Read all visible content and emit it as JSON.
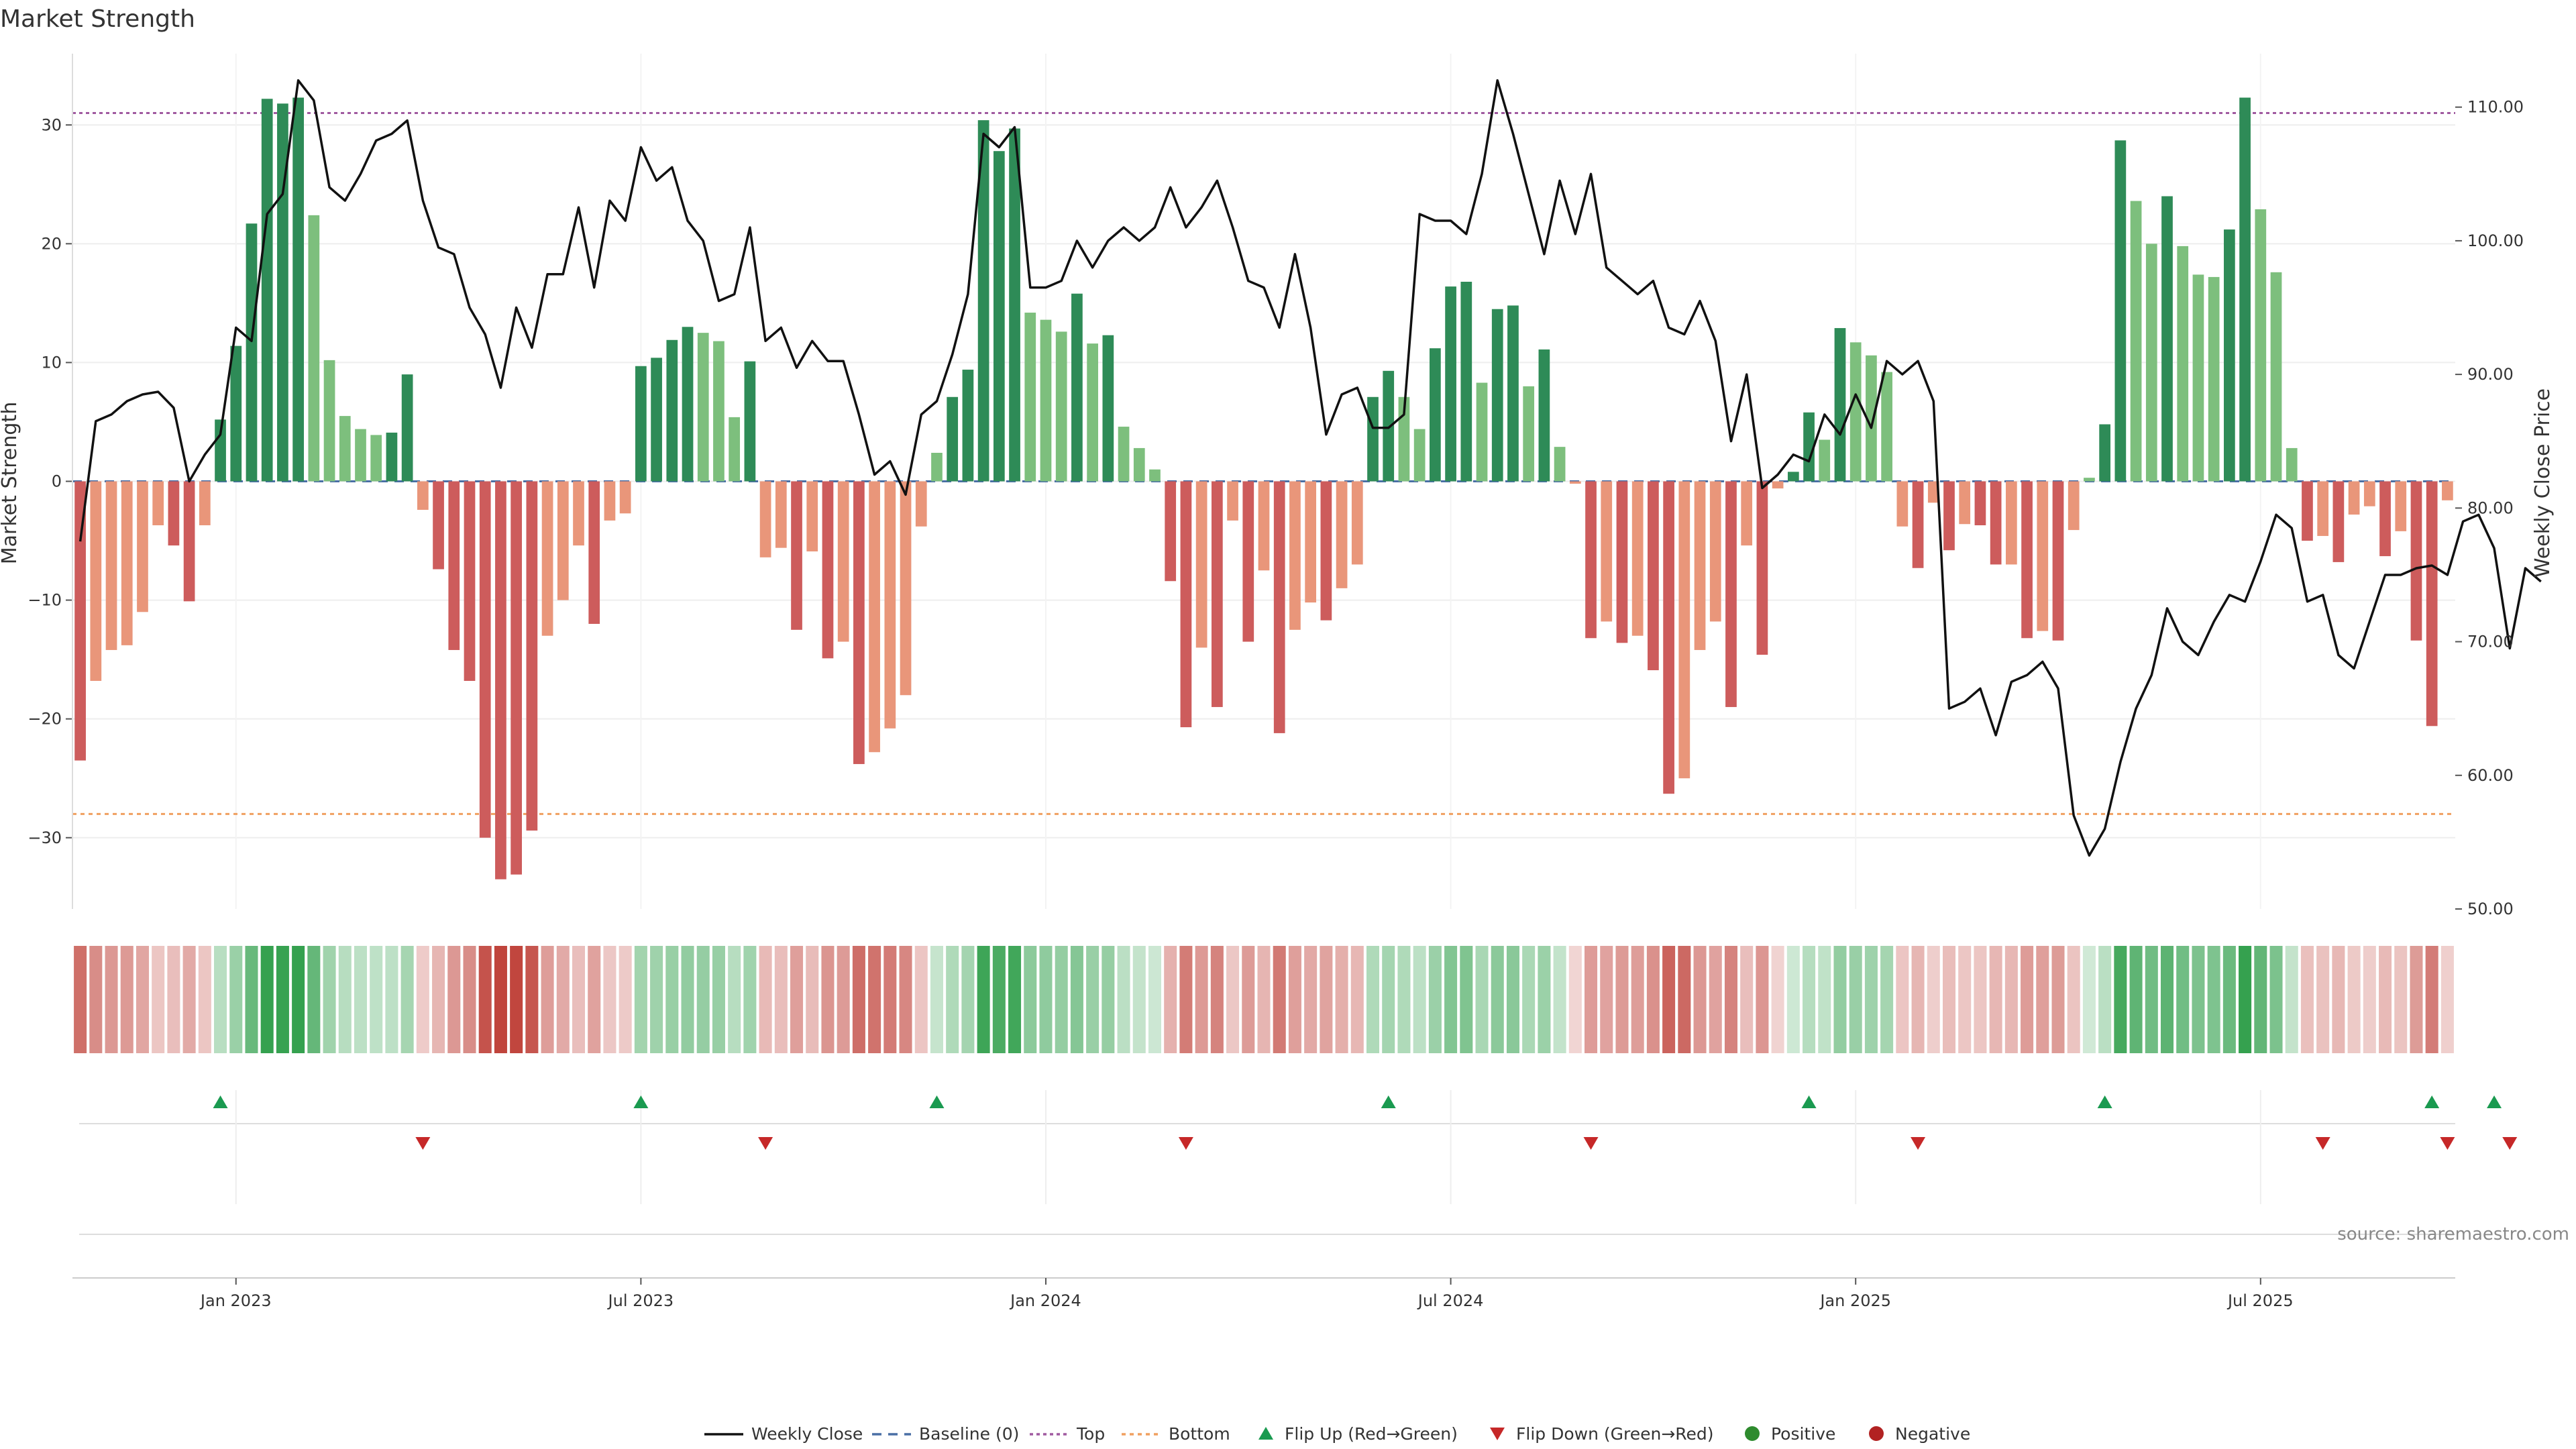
{
  "chart_data": {
    "type": "bar",
    "title": "Market Strength",
    "ylabel_left": "Market Strength",
    "ylabel_right": "Weekly Close Price",
    "ylim_left": [
      -36,
      36
    ],
    "ylim_right": [
      50,
      114
    ],
    "yticks_left": [
      30,
      20,
      10,
      0,
      -10,
      -20,
      -30
    ],
    "ytick_labels_left": [
      "30",
      "20",
      "10",
      "0",
      "−10",
      "−20",
      "−30"
    ],
    "yticks_right": [
      110,
      100,
      90,
      80,
      70,
      60,
      50
    ],
    "ytick_labels_right": [
      "110.00",
      "100.00",
      "90.00",
      "80.00",
      "70.00",
      "60.00",
      "50.00"
    ],
    "x_tick_labels": [
      "Jan 2023",
      "Jul 2023",
      "Jan 2024",
      "Jul 2024",
      "Jan 2025",
      "Jul 2025"
    ],
    "x_tick_week_index": [
      10,
      36,
      62,
      88,
      114,
      140
    ],
    "top_line": 31,
    "bottom_line": -28,
    "baseline": 0,
    "strength": [
      -23.5,
      -16.8,
      -14.2,
      -13.8,
      -11.0,
      -3.7,
      -5.4,
      -10.1,
      -3.7,
      5.2,
      11.4,
      21.7,
      32.2,
      31.8,
      32.3,
      22.4,
      10.2,
      5.5,
      4.4,
      3.9,
      4.1,
      9.0,
      -2.4,
      -7.4,
      -14.2,
      -16.8,
      -30.0,
      -33.5,
      -33.1,
      -29.4,
      -13.0,
      -10.0,
      -5.4,
      -12.0,
      -3.3,
      -2.7,
      9.7,
      10.4,
      11.9,
      13.0,
      12.5,
      11.8,
      5.4,
      10.1,
      -6.4,
      -5.6,
      -12.5,
      -5.9,
      -14.9,
      -13.5,
      -23.8,
      -22.8,
      -20.8,
      -18.0,
      -3.8,
      2.4,
      7.1,
      9.4,
      30.4,
      27.8,
      29.7,
      14.2,
      13.6,
      12.6,
      15.8,
      11.6,
      12.3,
      4.6,
      2.8,
      1.0,
      -8.4,
      -20.7,
      -14.0,
      -19.0,
      -3.3,
      -13.5,
      -7.5,
      -21.2,
      -12.5,
      -10.2,
      -11.7,
      -9.0,
      -7.0,
      7.1,
      9.3,
      7.1,
      4.4,
      11.2,
      16.4,
      16.8,
      8.3,
      14.5,
      14.8,
      8.0,
      11.1,
      2.9,
      -0.2,
      -13.2,
      -11.8,
      -13.6,
      -13.0,
      -15.9,
      -26.3,
      -25.0,
      -14.2,
      -11.8,
      -19.0,
      -5.4,
      -14.6,
      -0.6,
      0.8,
      5.8,
      3.5,
      12.9,
      11.7,
      10.6,
      9.2,
      -3.8,
      -7.3,
      -1.8,
      -5.8,
      -3.6,
      -3.7,
      -7.0,
      -7.0,
      -13.2,
      -12.6,
      -13.4,
      -4.1,
      0.3,
      4.8,
      28.7,
      23.6,
      20.0,
      24.0,
      19.8,
      17.4,
      17.2,
      21.2,
      32.3,
      22.9,
      17.6,
      2.8,
      -5.0,
      -4.6,
      -6.8,
      -2.8,
      -2.1,
      -6.3,
      -4.2,
      -13.4,
      -20.6,
      -1.6
    ],
    "weekly_close": [
      77.5,
      86.5,
      87.0,
      88.0,
      88.5,
      88.7,
      87.5,
      82.0,
      84.0,
      85.5,
      93.5,
      92.5,
      102.0,
      103.5,
      112.0,
      110.5,
      104.0,
      103.0,
      105.0,
      107.5,
      108.0,
      109.0,
      103.0,
      99.5,
      99.0,
      95.0,
      93.0,
      89.0,
      95.0,
      92.0,
      97.5,
      97.5,
      102.5,
      96.5,
      103.0,
      101.5,
      107.0,
      104.5,
      105.5,
      101.5,
      100.0,
      95.5,
      96.0,
      101.0,
      92.5,
      93.5,
      90.5,
      92.5,
      91.0,
      91.0,
      87.0,
      82.5,
      83.5,
      81.0,
      87.0,
      88.0,
      91.5,
      96.0,
      108.0,
      107.0,
      108.5,
      96.5,
      96.5,
      97.0,
      100.0,
      98.0,
      100.0,
      101.0,
      100.0,
      101.0,
      104.0,
      101.0,
      102.5,
      104.5,
      101.0,
      97.0,
      96.5,
      93.5,
      99.0,
      93.5,
      85.5,
      88.5,
      89.0,
      86.0,
      86.0,
      87.0,
      102.0,
      101.5,
      101.5,
      100.5,
      105.0,
      112.0,
      108.0,
      103.5,
      99.0,
      104.5,
      100.5,
      105.0,
      98.0,
      97.0,
      96.0,
      97.0,
      93.5,
      93.0,
      95.5,
      92.5,
      85.0,
      90.0,
      81.5,
      82.5,
      84.0,
      83.5,
      87.0,
      85.5,
      88.5,
      86.0,
      91.0,
      90.0,
      91.0,
      88.0,
      65.0,
      65.5,
      66.5,
      63.0,
      67.0,
      67.5,
      68.5,
      66.5,
      57.0,
      54.0,
      56.0,
      61.0,
      65.0,
      67.5,
      72.5,
      70.0,
      69.0,
      71.5,
      73.5,
      73.0,
      76.0,
      79.5,
      78.5,
      73.0,
      73.5,
      69.0,
      68.0,
      71.5,
      75.0,
      75.0,
      75.5,
      75.7,
      75.0,
      79.0,
      79.5,
      77.0,
      69.5,
      75.5,
      74.5
    ],
    "flip_up_weeks": [
      9,
      36,
      55,
      84,
      111,
      130,
      151,
      155
    ],
    "flip_down_weeks": [
      22,
      44,
      71,
      97,
      118,
      144,
      152,
      156
    ],
    "legend": [
      "Weekly Close",
      "Baseline (0)",
      "Top",
      "Bottom",
      "Flip Up (Red→Green)",
      "Flip Down (Green→Red)",
      "Positive",
      "Negative"
    ],
    "source": "source: sharemaestro.com",
    "colors": {
      "pos_strong": "#2e8b57",
      "pos_weak": "#7dbf7d",
      "neg_strong": "#cd5c5c",
      "neg_weak": "#e9967a",
      "close_line": "#111111",
      "top_line": "#a05aa0",
      "bottom_line": "#f0a060",
      "baseline": "#4a6fa5",
      "flip_up": "#1a9a50",
      "flip_down": "#c62828",
      "positive_dot": "#2e8b2e",
      "negative_dot": "#b22222"
    }
  }
}
